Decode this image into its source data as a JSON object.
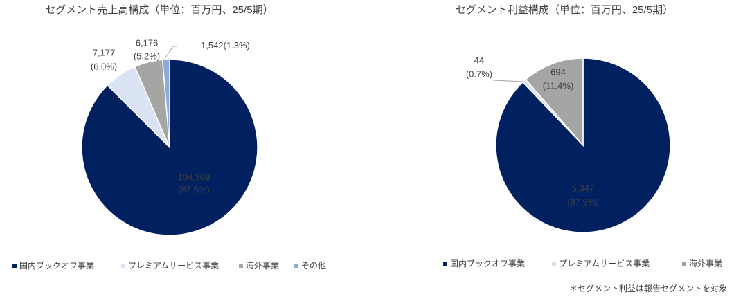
{
  "chart_data": [
    {
      "type": "pie",
      "title": "セグメント売上高構成（単位：百万円、25/5期）",
      "categories": [
        "国内ブックオフ事業",
        "プレミアムサービス事業",
        "海外事業",
        "その他"
      ],
      "values": [
        104309,
        7177,
        6176,
        1542
      ],
      "value_labels": [
        "104,309",
        "7,177",
        "6,176",
        "1,542"
      ],
      "percent_labels": [
        "(87.5%)",
        "(6.0%)",
        "(5.2%)",
        "(1.3%)"
      ],
      "colors": [
        "#002060",
        "#dae3f3",
        "#a5a5a5",
        "#8eaadb"
      ]
    },
    {
      "type": "pie",
      "title": "セグメント利益構成（単位：百万円、25/5期）",
      "categories": [
        "国内ブックオフ事業",
        "プレミアムサービス事業",
        "海外事業"
      ],
      "values": [
        5347,
        44,
        694
      ],
      "value_labels": [
        "5,347",
        "44",
        "694"
      ],
      "percent_labels": [
        "(87.9%)",
        "(0.7%)",
        "(11.4%)"
      ],
      "colors": [
        "#002060",
        "#dae3f3",
        "#a5a5a5"
      ]
    }
  ],
  "footnote": "＊セグメント利益は報告セグメントを対象"
}
